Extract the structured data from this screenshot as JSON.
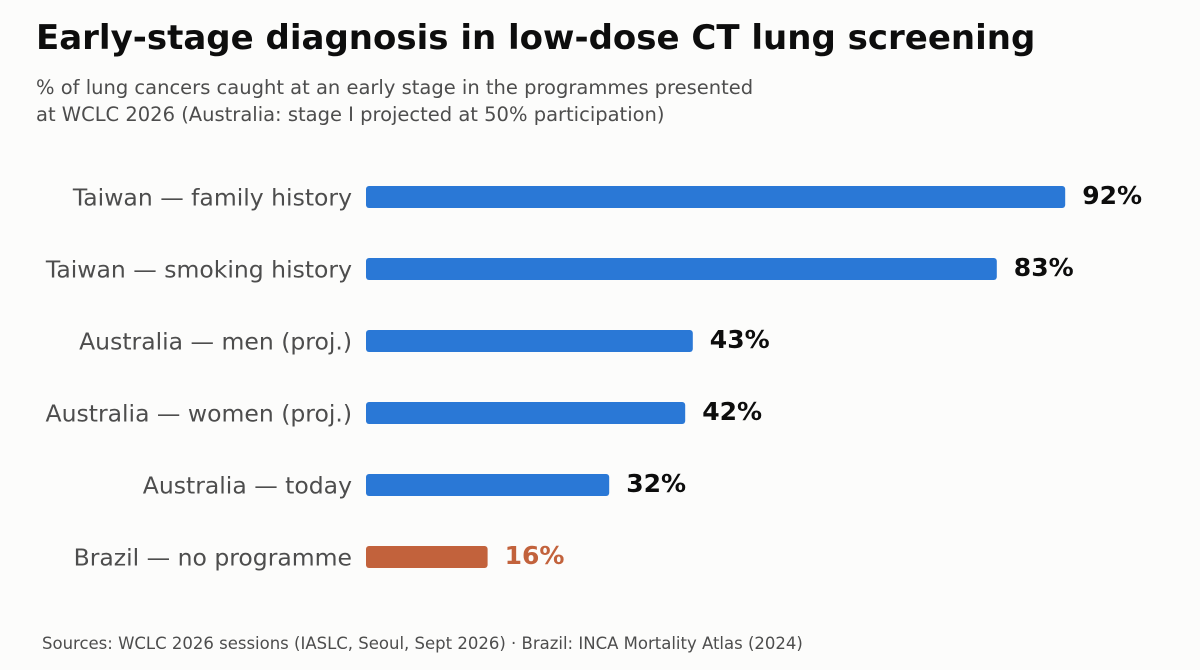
{
  "header": {
    "title": "Early-stage diagnosis in low-dose CT lung screening",
    "subtitle_line1": "% of lung cancers caught at an early stage in the programmes presented",
    "subtitle_line2": "at WCLC 2026 (Australia: stage I projected at 50% participation)"
  },
  "footer": {
    "source": "Sources: WCLC 2026 sessions (IASLC, Seoul, Sept 2026) · Brazil: INCA Mortality Atlas (2024)"
  },
  "colors": {
    "bar": "#2a78d6",
    "highlight": "#c2623c",
    "label": "#4d4d4d",
    "value": "#0d0d0d"
  },
  "chart_data": {
    "type": "bar",
    "orientation": "horizontal",
    "categories": [
      "Taiwan — family history",
      "Taiwan — smoking history",
      "Australia — men (proj.)",
      "Australia — women (proj.)",
      "Australia — today",
      "Brazil — no programme"
    ],
    "values": [
      92,
      83,
      43,
      42,
      32,
      16
    ],
    "value_labels": [
      "92%",
      "83%",
      "43%",
      "42%",
      "32%",
      "16%"
    ],
    "highlighted": [
      false,
      false,
      false,
      false,
      false,
      true
    ],
    "unit": "%",
    "xlim": [
      0,
      100
    ],
    "grid": false,
    "legend": "none"
  }
}
